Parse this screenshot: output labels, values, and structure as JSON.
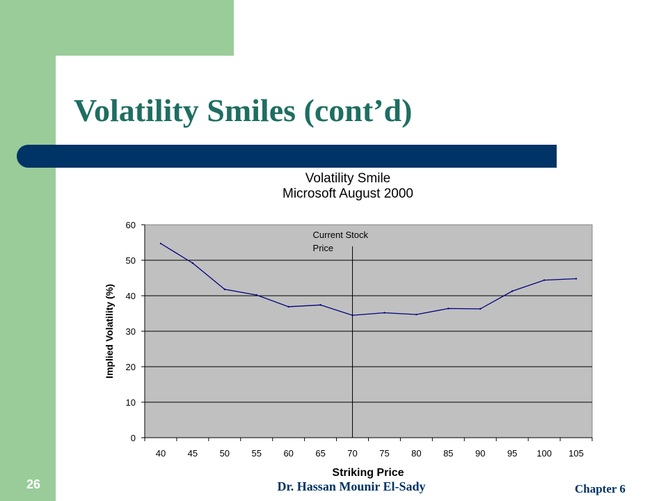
{
  "slide": {
    "title": "Volatility Smiles (cont’d)",
    "number": "26",
    "author": "Dr. Hassan Mounir El-Sady",
    "chapter": "Chapter 6"
  },
  "colors": {
    "sidebar": "#99cc99",
    "title_text": "#1f6e62",
    "title_bar": "#003366",
    "plot_background": "#c0c0c0",
    "series_line": "#000080"
  },
  "chart_data": {
    "type": "line",
    "title_lines": [
      "Volatility Smile",
      "Microsoft August 2000"
    ],
    "xlabel": "Striking Price",
    "ylabel": "Implied Volatility (%)",
    "categories": [
      "40",
      "45",
      "50",
      "55",
      "60",
      "65",
      "70",
      "75",
      "80",
      "85",
      "90",
      "95",
      "100",
      "105"
    ],
    "series": [
      {
        "values": [
          54.7,
          49.2,
          41.8,
          40.2,
          36.9,
          37.4,
          34.5,
          35.2,
          34.7,
          36.4,
          36.3,
          41.3,
          44.4,
          44.8
        ]
      }
    ],
    "ylim": [
      0,
      60
    ],
    "yticks": [
      0,
      10,
      20,
      30,
      40,
      50,
      60
    ],
    "grid": "horizontal",
    "legend": "none",
    "annotation": {
      "label_lines": [
        "Current Stock",
        "Price"
      ],
      "x": 70
    }
  }
}
